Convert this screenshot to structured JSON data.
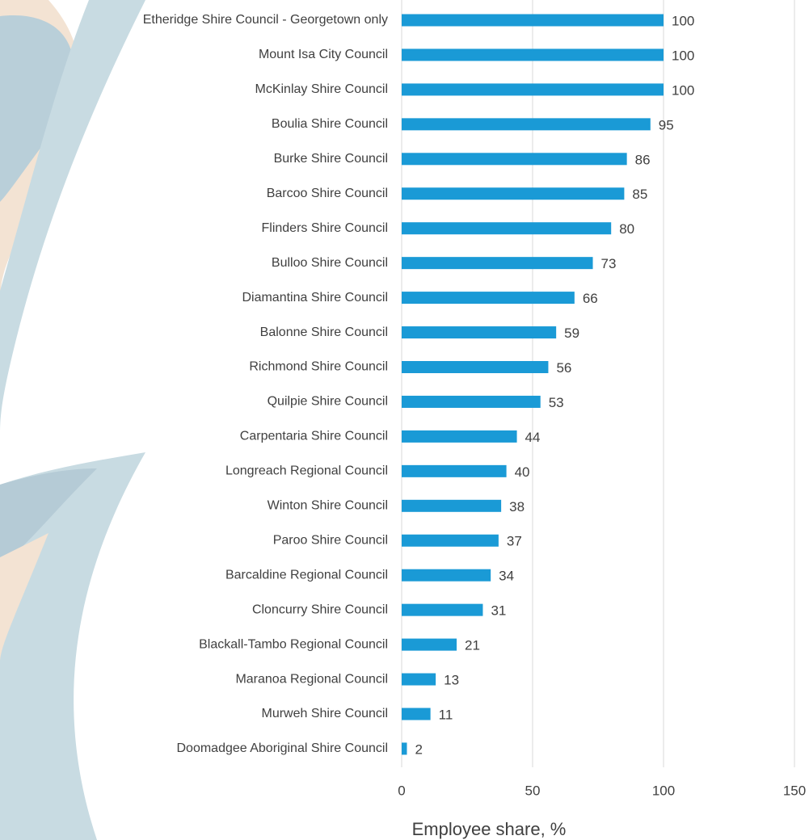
{
  "chart_data": {
    "type": "hbar",
    "x_label": "Employee share, %",
    "categories": [
      "Etheridge Shire Council - Georgetown only",
      "Mount Isa City Council",
      "McKinlay Shire Council",
      "Boulia Shire Council",
      "Burke Shire Council",
      "Barcoo Shire Council",
      "Flinders Shire Council",
      "Bulloo Shire Council",
      "Diamantina Shire Council",
      "Balonne Shire Council",
      "Richmond Shire Council",
      "Quilpie Shire Council",
      "Carpentaria Shire Council",
      "Longreach Regional Council",
      "Winton Shire Council",
      "Paroo Shire Council",
      "Barcaldine Regional Council",
      "Cloncurry Shire Council",
      "Blackall-Tambo Regional Council",
      "Maranoa Regional Council",
      "Murweh Shire Council",
      "Doomadgee Aboriginal Shire Council"
    ],
    "values": [
      100,
      100,
      100,
      95,
      86,
      85,
      80,
      73,
      66,
      59,
      56,
      53,
      44,
      40,
      38,
      37,
      34,
      31,
      21,
      13,
      11,
      2
    ],
    "color": "#1a9ad6",
    "xlim": [
      0,
      150
    ],
    "xticks": [
      0,
      50,
      100,
      150
    ],
    "grid": true
  }
}
